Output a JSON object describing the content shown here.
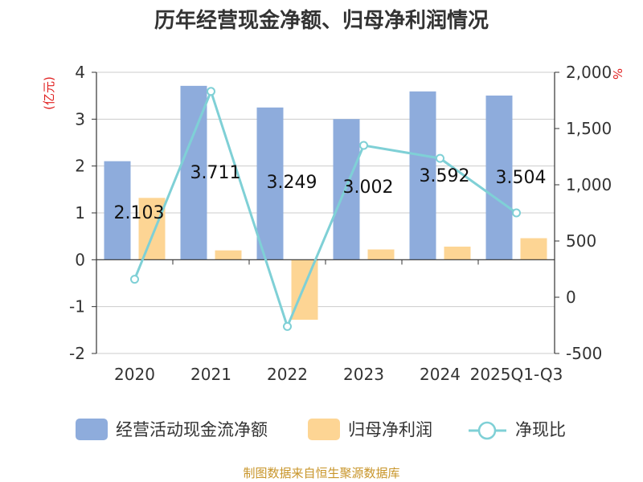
{
  "chart_data": {
    "type": "bar",
    "title": "历年经营现金净额、归母净利润情况",
    "categories": [
      "2020",
      "2021",
      "2022",
      "2023",
      "2024",
      "2025Q1-Q3"
    ],
    "series": [
      {
        "name": "经营活动现金流净额",
        "type": "bar",
        "axis": "left",
        "values": [
          2.103,
          3.711,
          3.249,
          3.002,
          3.592,
          3.504
        ],
        "labels": [
          "2.103",
          "3.711",
          "3.249",
          "3.002",
          "3.592",
          "3.504"
        ],
        "color": "#8eacdc"
      },
      {
        "name": "归母净利润",
        "type": "bar",
        "axis": "left",
        "values": [
          1.32,
          0.2,
          -1.28,
          0.22,
          0.28,
          0.46
        ],
        "color": "#fdd594"
      },
      {
        "name": "净现比",
        "type": "line",
        "axis": "right",
        "values": [
          160,
          1830,
          -260,
          1350,
          1235,
          750
        ],
        "color": "#7fd0d6"
      }
    ],
    "y_left": {
      "unit": "(亿元)",
      "range": [
        -2,
        4
      ],
      "ticks": [
        4,
        3,
        2,
        1,
        0,
        -1,
        -2
      ],
      "tick_labels": [
        "4",
        "3",
        "2",
        "1",
        "0",
        "-1",
        "-2"
      ]
    },
    "y_right": {
      "unit": "%",
      "range": [
        -500,
        2000
      ],
      "ticks": [
        2000,
        1500,
        1000,
        500,
        0,
        -500
      ],
      "tick_labels": [
        "2,000",
        "1,500",
        "1,000",
        "500",
        "0",
        "-500"
      ]
    },
    "grid": true,
    "legend": "bottom-center",
    "source": "制图数据来自恒生聚源数据库"
  }
}
